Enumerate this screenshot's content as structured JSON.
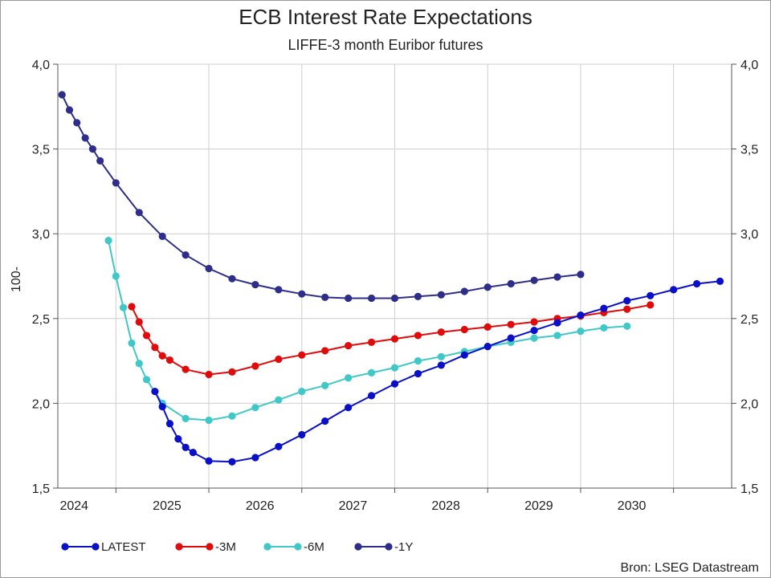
{
  "chart_data": {
    "type": "line",
    "title": "ECB Interest Rate Expectations",
    "subtitle": "LIFFE-3 month Euribor futures",
    "ylabel": "100-",
    "ylim": [
      1.5,
      4.0
    ],
    "yticks": [
      "4,0",
      "3,5",
      "3,0",
      "2,5",
      "2,0",
      "1,5"
    ],
    "ytick_values": [
      4.0,
      3.5,
      3.0,
      2.5,
      2.0,
      1.5
    ],
    "xlim": [
      2023.625,
      2030.875
    ],
    "xtick_labels": [
      "2024",
      "2025",
      "2026",
      "2027",
      "2028",
      "2029",
      "2030"
    ],
    "xtick_label_positions": [
      2023.8,
      2024.8,
      2025.8,
      2026.8,
      2027.8,
      2028.8,
      2029.8
    ],
    "x_gridlines": [
      2024.25,
      2025.25,
      2026.25,
      2027.25,
      2028.25,
      2029.25,
      2030.25
    ],
    "grid": true,
    "legend_position": "bottom",
    "source": "Bron: LSEG Datastream",
    "series": [
      {
        "name": "LATEST",
        "color": "#0a10c8",
        "x": [
          2024.67,
          2024.75,
          2024.83,
          2024.92,
          2025.0,
          2025.08,
          2025.25,
          2025.5,
          2025.75,
          2026.0,
          2026.25,
          2026.5,
          2026.75,
          2027.0,
          2027.25,
          2027.5,
          2027.75,
          2028.0,
          2028.25,
          2028.5,
          2028.75,
          2029.0,
          2029.25,
          2029.5,
          2029.75,
          2030.0,
          2030.25,
          2030.5,
          2030.75
        ],
        "values": [
          2.07,
          1.98,
          1.88,
          1.79,
          1.74,
          1.71,
          1.66,
          1.655,
          1.68,
          1.745,
          1.815,
          1.895,
          1.975,
          2.045,
          2.115,
          2.175,
          2.225,
          2.285,
          2.335,
          2.385,
          2.43,
          2.475,
          2.52,
          2.56,
          2.605,
          2.635,
          2.67,
          2.705,
          2.72
        ]
      },
      {
        "name": "-3M",
        "color": "#e00b0b",
        "x": [
          2024.42,
          2024.5,
          2024.58,
          2024.67,
          2024.75,
          2024.83,
          2025.0,
          2025.25,
          2025.5,
          2025.75,
          2026.0,
          2026.25,
          2026.5,
          2026.75,
          2027.0,
          2027.25,
          2027.5,
          2027.75,
          2028.0,
          2028.25,
          2028.5,
          2028.75,
          2029.0,
          2029.25,
          2029.5,
          2029.75,
          2030.0
        ],
        "values": [
          2.57,
          2.48,
          2.4,
          2.33,
          2.28,
          2.255,
          2.2,
          2.17,
          2.185,
          2.22,
          2.26,
          2.285,
          2.31,
          2.34,
          2.36,
          2.38,
          2.4,
          2.42,
          2.435,
          2.45,
          2.465,
          2.48,
          2.5,
          2.515,
          2.535,
          2.555,
          2.58
        ]
      },
      {
        "name": "-6M",
        "color": "#40c8c8",
        "x": [
          2024.17,
          2024.25,
          2024.33,
          2024.42,
          2024.5,
          2024.58,
          2024.75,
          2025.0,
          2025.25,
          2025.5,
          2025.75,
          2026.0,
          2026.25,
          2026.5,
          2026.75,
          2027.0,
          2027.25,
          2027.5,
          2027.75,
          2028.0,
          2028.25,
          2028.5,
          2028.75,
          2029.0,
          2029.25,
          2029.5,
          2029.75
        ],
        "values": [
          2.96,
          2.75,
          2.565,
          2.355,
          2.235,
          2.14,
          2.0,
          1.91,
          1.9,
          1.925,
          1.975,
          2.02,
          2.07,
          2.105,
          2.15,
          2.18,
          2.21,
          2.25,
          2.275,
          2.305,
          2.335,
          2.36,
          2.385,
          2.4,
          2.425,
          2.445,
          2.455
        ]
      },
      {
        "name": "-1Y",
        "color": "#2e2e8a",
        "x": [
          2023.67,
          2023.75,
          2023.83,
          2023.92,
          2024.0,
          2024.08,
          2024.25,
          2024.5,
          2024.75,
          2025.0,
          2025.25,
          2025.5,
          2025.75,
          2026.0,
          2026.25,
          2026.5,
          2026.75,
          2027.0,
          2027.25,
          2027.5,
          2027.75,
          2028.0,
          2028.25,
          2028.5,
          2028.75,
          2029.0,
          2029.25
        ],
        "values": [
          3.82,
          3.73,
          3.655,
          3.565,
          3.5,
          3.43,
          3.3,
          3.125,
          2.985,
          2.875,
          2.795,
          2.735,
          2.7,
          2.67,
          2.645,
          2.625,
          2.62,
          2.62,
          2.62,
          2.63,
          2.64,
          2.66,
          2.685,
          2.705,
          2.725,
          2.745,
          2.76
        ]
      }
    ]
  }
}
